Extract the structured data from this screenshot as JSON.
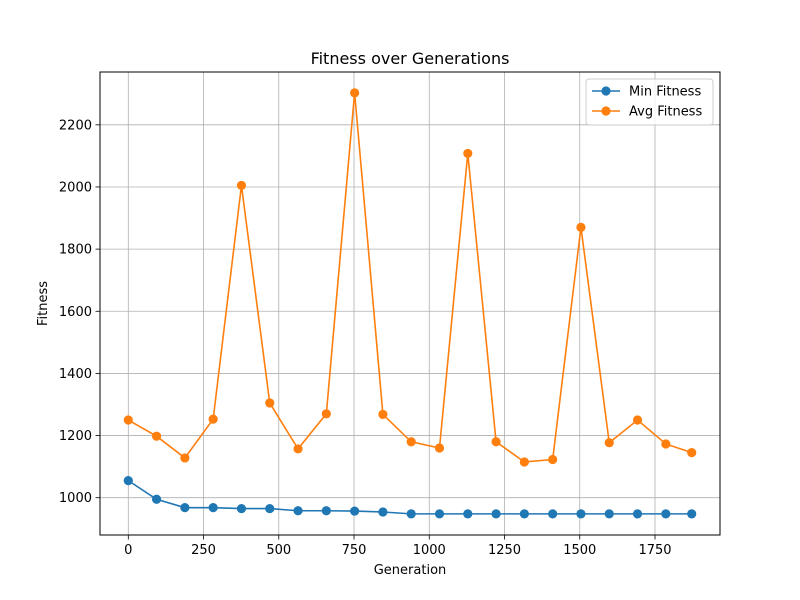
{
  "chart_data": {
    "type": "line",
    "title": "Fitness over Generations",
    "xlabel": "Generation",
    "ylabel": "Fitness",
    "xlim": [
      -94,
      1966
    ],
    "ylim": [
      880,
      2370
    ],
    "x_ticks": [
      0,
      250,
      500,
      750,
      1000,
      1250,
      1500,
      1750
    ],
    "y_ticks": [
      1000,
      1200,
      1400,
      1600,
      1800,
      2000,
      2200
    ],
    "x_tick_labels": [
      "0",
      "250",
      "500",
      "750",
      "1000",
      "1250",
      "1500",
      "1750"
    ],
    "y_tick_labels": [
      "1000",
      "1200",
      "1400",
      "1600",
      "1800",
      "2000",
      "2200"
    ],
    "grid": true,
    "legend_position": "top-right",
    "x": [
      0,
      94,
      188,
      282,
      376,
      470,
      564,
      658,
      752,
      846,
      940,
      1034,
      1128,
      1222,
      1316,
      1410,
      1504,
      1598,
      1692,
      1786,
      1872
    ],
    "series": [
      {
        "name": "Min Fitness",
        "color": "#1f77b4",
        "values": [
          1055,
          995,
          968,
          968,
          965,
          965,
          958,
          958,
          957,
          954,
          948,
          948,
          948,
          948,
          948,
          948,
          948,
          948,
          948,
          948,
          948
        ]
      },
      {
        "name": "Avg Fitness",
        "color": "#ff7f0e",
        "values": [
          1250,
          1198,
          1128,
          1253,
          2005,
          1305,
          1157,
          1270,
          2303,
          1268,
          1180,
          1160,
          2108,
          1180,
          1115,
          1123,
          1870,
          1177,
          1250,
          1173,
          1145
        ]
      }
    ]
  }
}
